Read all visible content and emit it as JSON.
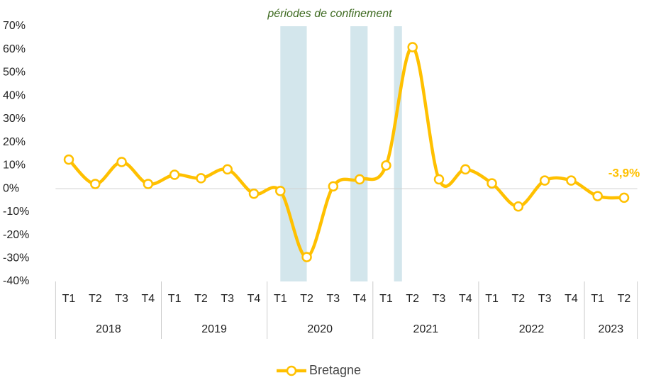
{
  "chart_data": {
    "type": "line",
    "annotation": "périodes de confinement",
    "categories": [
      "T1",
      "T2",
      "T3",
      "T4",
      "T1",
      "T2",
      "T3",
      "T4",
      "T1",
      "T2",
      "T3",
      "T4",
      "T1",
      "T2",
      "T3",
      "T4",
      "T1",
      "T2",
      "T3",
      "T4",
      "T1",
      "T2"
    ],
    "groups": [
      {
        "label": "2018",
        "span": 4
      },
      {
        "label": "2019",
        "span": 4
      },
      {
        "label": "2020",
        "span": 4
      },
      {
        "label": "2021",
        "span": 4
      },
      {
        "label": "2022",
        "span": 4
      },
      {
        "label": "2023",
        "span": 2
      }
    ],
    "series": [
      {
        "name": "Bretagne",
        "color": "#FFC000",
        "values": [
          12.5,
          2,
          11.5,
          2,
          6,
          4.5,
          8.3,
          -2.2,
          -1,
          -29.5,
          1,
          4,
          10,
          61,
          4,
          8.3,
          2.3,
          -7.7,
          3.5,
          3.5,
          -3.2,
          -3.9
        ],
        "value_labels": [
          null,
          null,
          null,
          null,
          null,
          null,
          null,
          null,
          null,
          null,
          null,
          null,
          null,
          null,
          null,
          null,
          null,
          null,
          null,
          null,
          null,
          "-3,9%"
        ]
      }
    ],
    "shaded_periods": [
      [
        8.0,
        9.0
      ],
      [
        10.65,
        11.3
      ],
      [
        12.3,
        12.6
      ]
    ],
    "ylim": [
      -40,
      70
    ],
    "yticks": [
      {
        "value": -40,
        "label": "-40%"
      },
      {
        "value": -30,
        "label": "-30%"
      },
      {
        "value": -20,
        "label": "-20%"
      },
      {
        "value": -10,
        "label": "-10%"
      },
      {
        "value": 0,
        "label": "0%"
      },
      {
        "value": 10,
        "label": "10%"
      },
      {
        "value": 20,
        "label": "20%"
      },
      {
        "value": 30,
        "label": "30%"
      },
      {
        "value": 40,
        "label": "40%"
      },
      {
        "value": 50,
        "label": "50%"
      },
      {
        "value": 60,
        "label": "60%"
      },
      {
        "value": 70,
        "label": "70%"
      }
    ],
    "legend": "bottom"
  }
}
